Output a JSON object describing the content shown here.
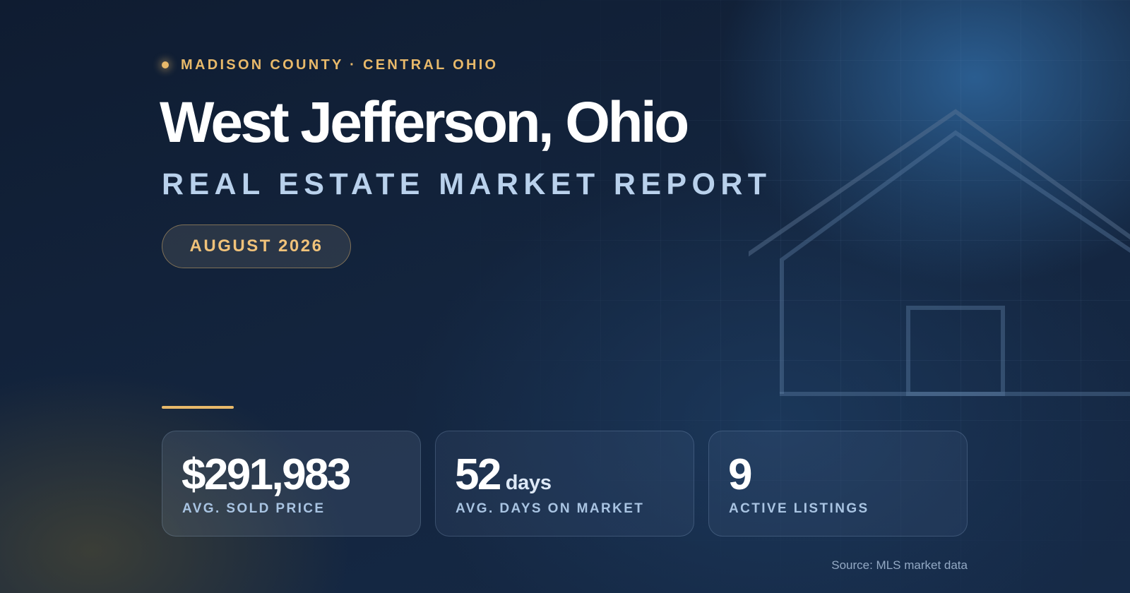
{
  "header": {
    "eyebrow": "MADISON COUNTY · CENTRAL OHIO",
    "title": "West Jefferson, Ohio",
    "subtitle": "REAL ESTATE MARKET REPORT",
    "period": "AUGUST 2026"
  },
  "stats": [
    {
      "value": "$291,983",
      "unit": "",
      "label": "AVG. SOLD PRICE"
    },
    {
      "value": "52",
      "unit": "days",
      "label": "AVG. DAYS ON MARKET"
    },
    {
      "value": "9",
      "unit": "",
      "label": "ACTIVE LISTINGS"
    }
  ],
  "footer": {
    "source": "Source: MLS market data"
  },
  "colors": {
    "accent": "#e8b96a",
    "background": "#13243d",
    "subtitle": "#b9d1ec",
    "label": "#a9c4e2"
  },
  "decor": {
    "background_icon": "house-outline-icon"
  }
}
